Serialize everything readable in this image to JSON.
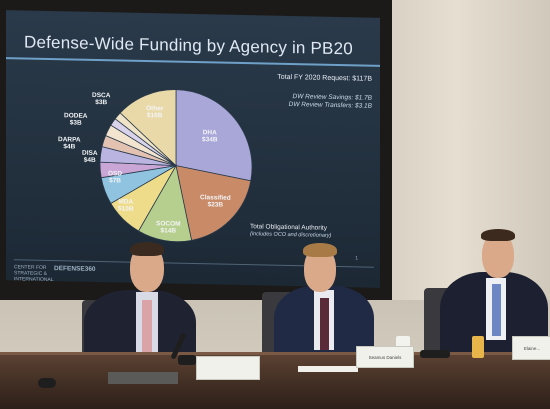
{
  "slide": {
    "title": "Defense-Wide Funding by Agency in PB20",
    "total_request": "Total FY 2020 Request: $117B",
    "review_savings": "DW Review Savings: $1.7B",
    "review_transfers": "DW Review Transfers: $3.1B",
    "toa_label": "Total Obligational Authority",
    "toa_note": "(includes OCO and discretionary)",
    "logo_text": "CENTER FOR STRATEGIC & INTERNATIONAL STUDIES",
    "logo_brand": "DEFENSE360",
    "page_number": "1"
  },
  "chart_data": {
    "type": "pie",
    "title": "Defense-Wide Funding by Agency in PB20",
    "slices": [
      {
        "name": "DHA",
        "value": 34,
        "label": "DHA\n$34B",
        "color": "#a9a6d8"
      },
      {
        "name": "Classified",
        "value": 23,
        "label": "Classified\n$23B",
        "color": "#c98a68"
      },
      {
        "name": "SOCOM",
        "value": 14,
        "label": "SOCOM\n$14B",
        "color": "#b7cf8e"
      },
      {
        "name": "MDA",
        "value": 10,
        "label": "MDA\n$10B",
        "color": "#efdc8a"
      },
      {
        "name": "OSD",
        "value": 7,
        "label": "OSD\n$7B",
        "color": "#8fc3e0"
      },
      {
        "name": "DISA",
        "value": 4,
        "label": "DISA\n$4B",
        "color": "#c9a6d6"
      },
      {
        "name": "DARPA",
        "value": 4,
        "label": "DARPA\n$4B",
        "color": "#b9b4e0"
      },
      {
        "name": "DODEA",
        "value": 3,
        "label": "DODEA\n$3B",
        "color": "#e3c2b1"
      },
      {
        "name": "DSCA",
        "value": 3,
        "label": "DSCA\n$3B",
        "color": "#f3e4d0"
      },
      {
        "name": "small1",
        "value": 2,
        "label": "",
        "color": "#d8d2ea"
      },
      {
        "name": "small2",
        "value": 2,
        "label": "",
        "color": "#efe3c8"
      },
      {
        "name": "Other",
        "value": 16,
        "label": "Other\n$16B",
        "color": "#ead9a8"
      }
    ]
  },
  "nameplates": [
    "",
    "Seamus Daniels",
    "Elaine..."
  ]
}
